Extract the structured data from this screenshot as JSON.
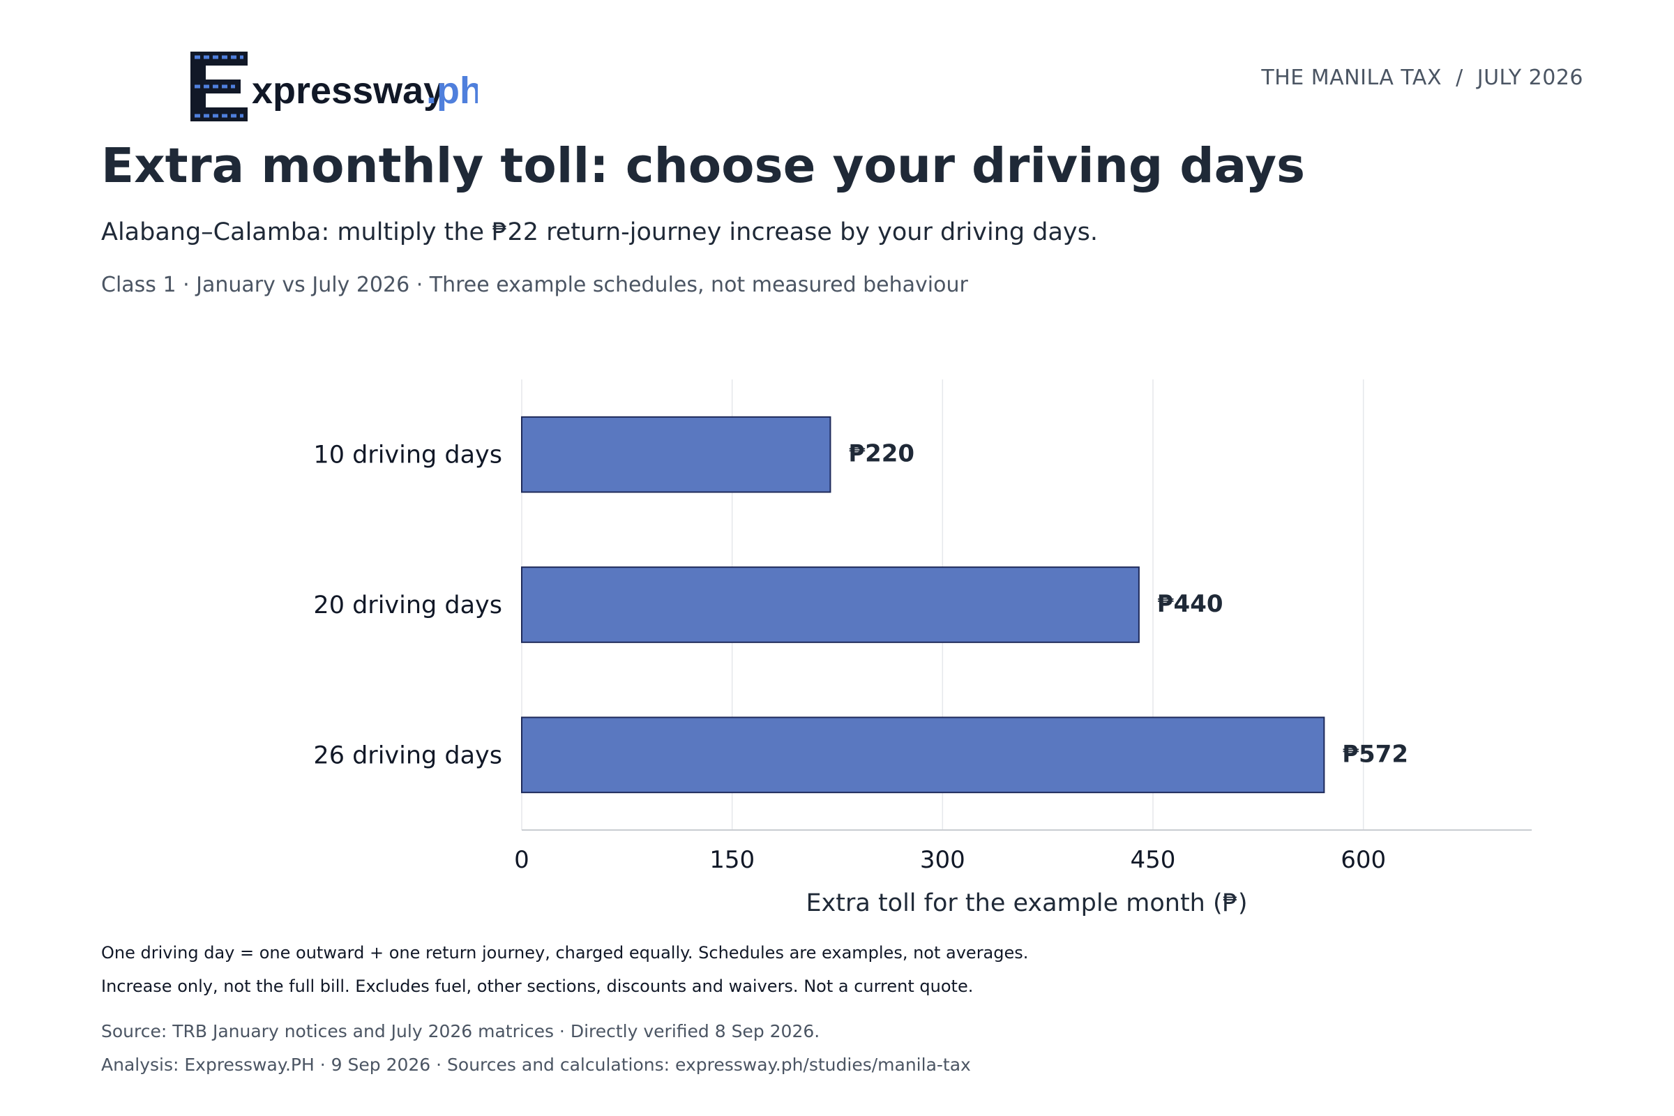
{
  "header": {
    "logo_text": "xpressway",
    "logo_suffix": ".ph",
    "kicker": "THE MANILA TAX  /  JULY 2026",
    "title": "Extra monthly toll: choose your driving days",
    "subtitle": "Alabang–Calamba: multiply the ₱22 return-journey increase by your driving days.",
    "meta": "Class 1 · January vs July 2026 · Three example schedules, not measured behaviour"
  },
  "colors": {
    "bar_fill": "#5a78c0",
    "bar_stroke": "#1e2a5a",
    "grid": "#e5e7eb",
    "axis": "#c9ccd1",
    "logo_dark": "#111827",
    "logo_accent": "#4f7fdc"
  },
  "chart_data": {
    "type": "bar",
    "orientation": "horizontal",
    "categories": [
      "10 driving days",
      "20 driving days",
      "26 driving days"
    ],
    "values": [
      220,
      440,
      572
    ],
    "value_labels": [
      "₱220",
      "₱440",
      "₱572"
    ],
    "xlabel": "Extra toll for the example month (₱)",
    "xlim": [
      0,
      720
    ],
    "xticks": [
      0,
      150,
      300,
      450,
      600
    ],
    "grid": "vertical",
    "legend": "none"
  },
  "footer": {
    "note1": "One driving day = one outward + one return journey, charged equally. Schedules are examples, not averages.",
    "note2": "Increase only, not the full bill. Excludes fuel, other sections, discounts and waivers. Not a current quote.",
    "source": "Source: TRB January notices and July 2026 matrices · Directly verified 8 Sep 2026.",
    "analysis": "Analysis: Expressway.PH · 9 Sep 2026 · Sources and calculations: expressway.ph/studies/manila-tax"
  }
}
